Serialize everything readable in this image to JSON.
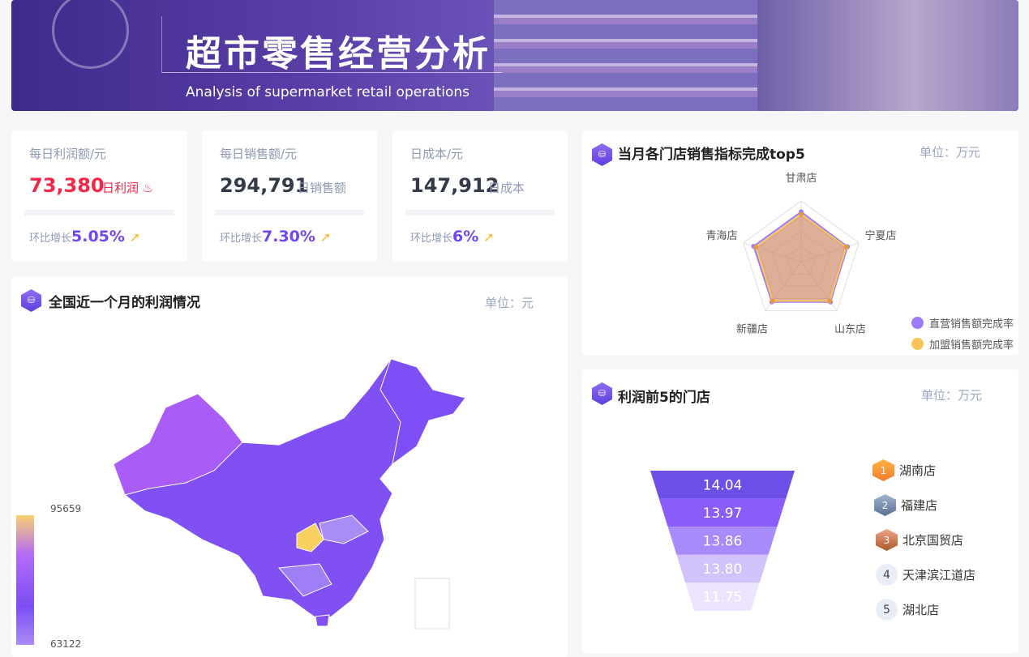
{
  "banner": {
    "title": "超市零售经营分析",
    "subtitle": "Analysis of supermarket retail operations"
  },
  "kpis": [
    {
      "label": "每日利润额/元",
      "value": "73,380",
      "unit": "日利润",
      "growth_label": "环比增长",
      "growth": "5.05%",
      "icon": "fire-icon",
      "value_color": "#f0284a"
    },
    {
      "label": "每日销售额/元",
      "value": "294,791",
      "unit": "日销售额",
      "growth_label": "环比增长",
      "growth": "7.30%",
      "icon": "",
      "value_color": "#333a48"
    },
    {
      "label": "日成本/元",
      "value": "147,912",
      "unit": "日成本",
      "growth_label": "环比增长",
      "growth": "6%",
      "icon": "",
      "value_color": "#333a48"
    }
  ],
  "map_panel": {
    "title": "全国近一个月的利润情况",
    "unit": "单位：元",
    "visual_max": "95659",
    "visual_min": "63122"
  },
  "radar_panel": {
    "title": "当月各门店销售指标完成top5",
    "unit": "单位：万元"
  },
  "funnel_panel": {
    "title": "利润前5的门店",
    "unit": "单位：万元",
    "ranking": [
      {
        "rank": "1",
        "name": "湖南店"
      },
      {
        "rank": "2",
        "name": "福建店"
      },
      {
        "rank": "3",
        "name": "北京国贸店"
      },
      {
        "rank": "4",
        "name": "天津滨江道店"
      },
      {
        "rank": "5",
        "name": "湖北店"
      }
    ]
  },
  "chart_data": [
    {
      "type": "radar",
      "indicators": [
        "甘肃店",
        "宁夏店",
        "山东店",
        "新疆店",
        "青海店"
      ],
      "series": [
        {
          "name": "直营销售额完成率",
          "color": "#9b7bf7",
          "values": [
            82,
            80,
            82,
            82,
            82
          ]
        },
        {
          "name": "加盟销售额完成率",
          "color": "#f9c55a",
          "values": [
            78,
            78,
            80,
            80,
            78
          ]
        }
      ],
      "legend": "bottom-right"
    },
    {
      "type": "funnel",
      "categories": [
        "湖南店",
        "福建店",
        "北京国贸店",
        "天津滨江道店",
        "湖北店"
      ],
      "values": [
        14.04,
        13.97,
        13.86,
        13.8,
        11.75
      ],
      "labels": [
        "14.04",
        "13.97",
        "13.86",
        "13.80",
        "11.75"
      ],
      "colors": [
        "#6d4ee8",
        "#8a5cfb",
        "#a88bfa",
        "#d1c2fc",
        "#ece4fe"
      ]
    }
  ]
}
